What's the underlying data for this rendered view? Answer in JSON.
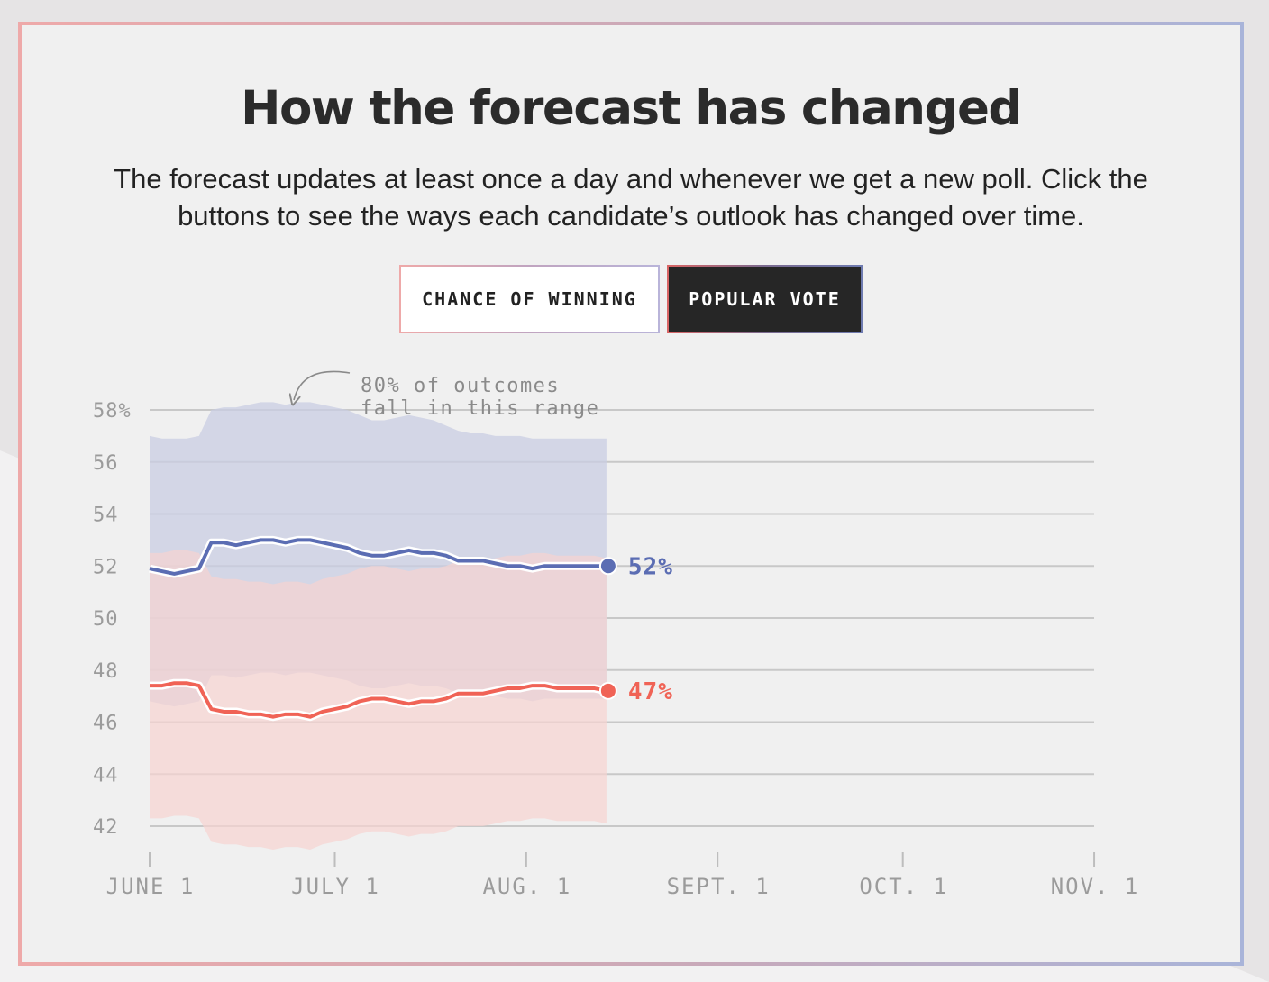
{
  "title": "How the forecast has changed",
  "subtitle": "The forecast updates at least once a day and whenever we get a new poll. Click the buttons to see the ways each candidate’s outlook has changed over time.",
  "toggle": {
    "chance_label": "CHANCE OF WINNING",
    "popular_label": "POPULAR VOTE",
    "selected": "POPULAR VOTE"
  },
  "colors": {
    "blue": "#5b6db3",
    "red": "#f06356",
    "blue_band": "#c9cde3",
    "red_band": "#f6d3d0",
    "grid": "#c8c8c8",
    "axis_text": "#9b9b9b"
  },
  "chart_data": {
    "type": "line",
    "title": "",
    "xlabel": "",
    "ylabel": "",
    "ylim": [
      42,
      58
    ],
    "y_ticks": [
      "58%",
      "56",
      "54",
      "52",
      "50",
      "48",
      "46",
      "44",
      "42"
    ],
    "x_ticks": [
      "JUNE 1",
      "JULY 1",
      "AUG. 1",
      "SEPT. 1",
      "OCT. 1",
      "NOV. 1"
    ],
    "x_domain": [
      "2020-06-01",
      "2020-11-01"
    ],
    "grid": true,
    "annotation": "80% of outcomes\nfall in this range",
    "x": [
      "2020-06-01",
      "2020-06-03",
      "2020-06-05",
      "2020-06-07",
      "2020-06-09",
      "2020-06-11",
      "2020-06-13",
      "2020-06-15",
      "2020-06-17",
      "2020-06-19",
      "2020-06-21",
      "2020-06-23",
      "2020-06-25",
      "2020-06-27",
      "2020-06-29",
      "2020-07-01",
      "2020-07-03",
      "2020-07-05",
      "2020-07-07",
      "2020-07-09",
      "2020-07-11",
      "2020-07-13",
      "2020-07-15",
      "2020-07-17",
      "2020-07-19",
      "2020-07-21",
      "2020-07-23",
      "2020-07-25",
      "2020-07-27",
      "2020-07-29",
      "2020-07-31",
      "2020-08-02",
      "2020-08-04",
      "2020-08-06",
      "2020-08-08",
      "2020-08-10",
      "2020-08-12",
      "2020-08-14"
    ],
    "series": [
      {
        "values": [
          51.9,
          51.8,
          51.7,
          51.8,
          51.9,
          52.9,
          52.9,
          52.8,
          52.9,
          53.0,
          53.0,
          52.9,
          53.0,
          53.0,
          52.9,
          52.8,
          52.7,
          52.5,
          52.4,
          52.4,
          52.5,
          52.6,
          52.5,
          52.5,
          52.4,
          52.2,
          52.2,
          52.2,
          52.1,
          52.0,
          52.0,
          51.9,
          52.0,
          52.0,
          52.0,
          52.0,
          52.0,
          52.0
        ],
        "upper": [
          57.0,
          56.9,
          56.9,
          56.9,
          57.0,
          58.0,
          58.1,
          58.1,
          58.2,
          58.3,
          58.3,
          58.2,
          58.3,
          58.3,
          58.2,
          58.1,
          58.0,
          57.8,
          57.6,
          57.6,
          57.7,
          57.8,
          57.7,
          57.6,
          57.4,
          57.2,
          57.1,
          57.1,
          57.0,
          57.0,
          57.0,
          56.9,
          56.9,
          56.9,
          56.9,
          56.9,
          56.9,
          56.9
        ],
        "lower": [
          46.8,
          46.7,
          46.6,
          46.7,
          46.8,
          47.8,
          47.8,
          47.7,
          47.8,
          47.9,
          47.9,
          47.8,
          47.9,
          47.9,
          47.8,
          47.7,
          47.6,
          47.4,
          47.3,
          47.3,
          47.4,
          47.5,
          47.4,
          47.4,
          47.3,
          47.1,
          47.1,
          47.1,
          47.0,
          46.9,
          46.9,
          46.8,
          46.9,
          46.9,
          46.9,
          46.9,
          46.9,
          46.9
        ],
        "end_label": "52%"
      },
      {
        "values": [
          47.4,
          47.4,
          47.5,
          47.5,
          47.4,
          46.5,
          46.4,
          46.4,
          46.3,
          46.3,
          46.2,
          46.3,
          46.3,
          46.2,
          46.4,
          46.5,
          46.6,
          46.8,
          46.9,
          46.9,
          46.8,
          46.7,
          46.8,
          46.8,
          46.9,
          47.1,
          47.1,
          47.1,
          47.2,
          47.3,
          47.3,
          47.4,
          47.4,
          47.3,
          47.3,
          47.3,
          47.3,
          47.2
        ],
        "upper": [
          52.5,
          52.5,
          52.6,
          52.6,
          52.5,
          51.6,
          51.5,
          51.5,
          51.4,
          51.4,
          51.3,
          51.4,
          51.4,
          51.3,
          51.5,
          51.6,
          51.7,
          51.9,
          52.0,
          52.0,
          51.9,
          51.8,
          51.9,
          51.9,
          52.0,
          52.2,
          52.2,
          52.2,
          52.3,
          52.4,
          52.4,
          52.5,
          52.5,
          52.4,
          52.4,
          52.4,
          52.4,
          52.3
        ],
        "lower": [
          42.3,
          42.3,
          42.4,
          42.4,
          42.3,
          41.4,
          41.3,
          41.3,
          41.2,
          41.2,
          41.1,
          41.2,
          41.2,
          41.1,
          41.3,
          41.4,
          41.5,
          41.7,
          41.8,
          41.8,
          41.7,
          41.6,
          41.7,
          41.7,
          41.8,
          42.0,
          42.0,
          42.0,
          42.1,
          42.2,
          42.2,
          42.3,
          42.3,
          42.2,
          42.2,
          42.2,
          42.2,
          42.1
        ],
        "end_label": "47%"
      }
    ]
  }
}
